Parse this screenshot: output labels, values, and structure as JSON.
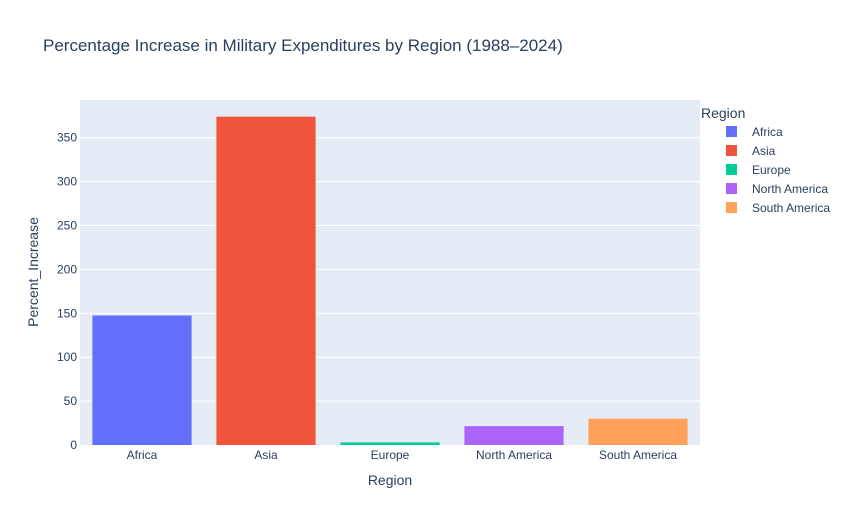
{
  "chart_data": {
    "type": "bar",
    "title": "Percentage Increase in Military Expenditures by Region (1988–2024)",
    "xlabel": "Region",
    "ylabel": "Percent_Increase",
    "categories": [
      "Africa",
      "Asia",
      "Europe",
      "North America",
      "South America"
    ],
    "values": [
      147.5,
      374.0,
      3.0,
      21.5,
      30.0
    ],
    "colors": [
      "#636efa",
      "#ef553b",
      "#00cc96",
      "#ab63fa",
      "#ffa15a"
    ],
    "ylim": [
      0,
      393
    ],
    "yticks": [
      0,
      50,
      100,
      150,
      200,
      250,
      300,
      350
    ],
    "grid": true,
    "legend": {
      "title": "Region",
      "position": "right",
      "items": [
        "Africa",
        "Asia",
        "Europe",
        "North America",
        "South America"
      ]
    },
    "plot_background": "#e5ecf6"
  }
}
